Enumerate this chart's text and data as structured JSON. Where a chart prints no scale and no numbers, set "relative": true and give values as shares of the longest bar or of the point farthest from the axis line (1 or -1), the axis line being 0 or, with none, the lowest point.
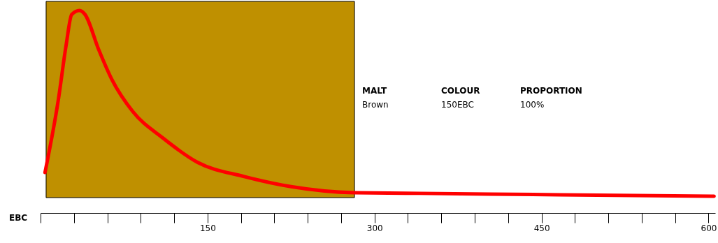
{
  "chart_data": {
    "type": "line",
    "relative": true,
    "xlabel": "EBC",
    "x": [
      4,
      16,
      23,
      28,
      35,
      40,
      52,
      64,
      83,
      110,
      141,
      183,
      225,
      282,
      340,
      466,
      605
    ],
    "series": [
      {
        "color": "#ff0000",
        "values": [
          0.2,
          0.56,
          0.83,
          0.98,
          1.0,
          0.98,
          0.81,
          0.66,
          0.5,
          0.37,
          0.25,
          0.18,
          0.13,
          0.1,
          0.097,
          0.09,
          0.083
        ]
      }
    ],
    "xlim": [
      0,
      606
    ],
    "xticks": [
      {
        "value": 0,
        "label": null
      },
      {
        "value": 30,
        "label": null
      },
      {
        "value": 60,
        "label": null
      },
      {
        "value": 90,
        "label": null
      },
      {
        "value": 120,
        "label": null
      },
      150,
      {
        "value": 180,
        "label": null
      },
      {
        "value": 210,
        "label": null
      },
      {
        "value": 240,
        "label": null
      },
      {
        "value": 270,
        "label": null
      },
      300,
      {
        "value": 330,
        "label": null
      },
      {
        "value": 360,
        "label": null
      },
      {
        "value": 390,
        "label": null
      },
      {
        "value": 420,
        "label": null
      },
      450,
      {
        "value": 480,
        "label": null
      },
      {
        "value": 510,
        "label": null
      },
      {
        "value": 540,
        "label": null
      },
      {
        "value": 570,
        "label": null
      },
      600
    ],
    "bands": [
      {
        "axis": "x",
        "from": 5,
        "to": 282,
        "color": "#bf9000"
      }
    ],
    "annotations": [
      "MALT",
      "Brown",
      "COLOUR",
      "150EBC",
      "PROPORTION",
      "100%"
    ],
    "grid": false,
    "marker": "none",
    "line_style": "solid"
  }
}
